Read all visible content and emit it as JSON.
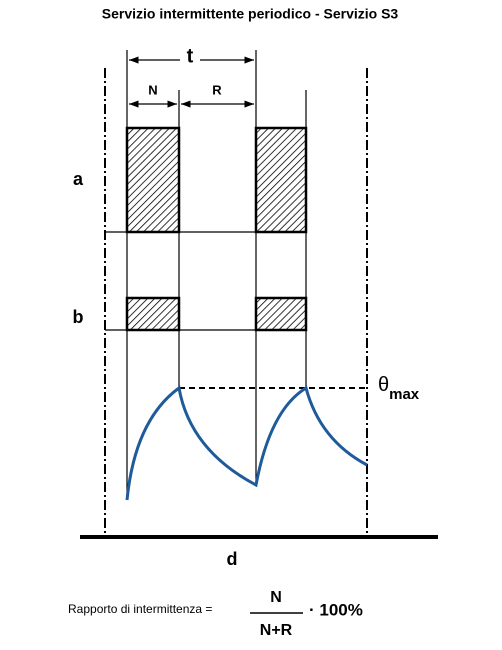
{
  "title": "Servizio intermittente periodico - Servizio S3",
  "labels": {
    "t": "t",
    "n": "N",
    "r": "R",
    "a": "a",
    "b": "b",
    "d": "d"
  },
  "theta": {
    "symbol": "θ",
    "subscript": "max"
  },
  "formula": {
    "prefix": "Rapporto di intermittenza =",
    "numerator": "N",
    "denominator": "N+R",
    "suffix": "· 100%"
  }
}
